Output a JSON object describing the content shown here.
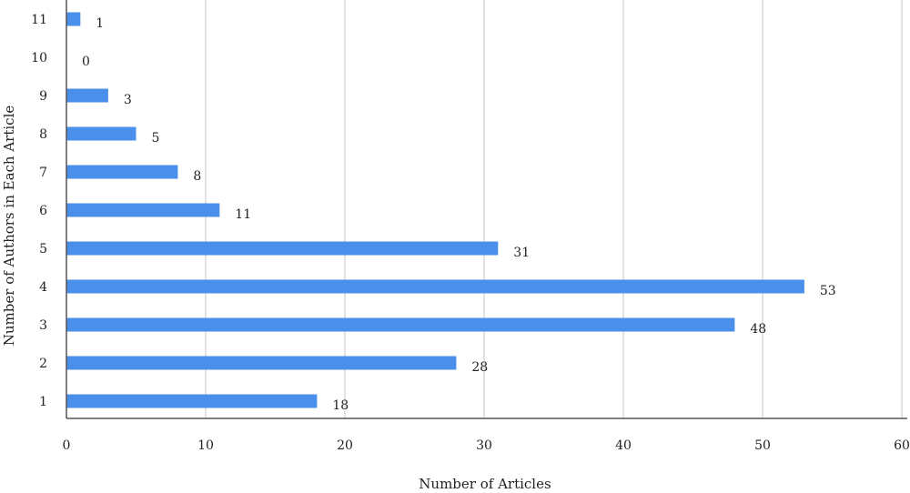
{
  "chart_data": {
    "type": "bar",
    "orientation": "horizontal",
    "categories": [
      "1",
      "2",
      "3",
      "4",
      "5",
      "6",
      "7",
      "8",
      "9",
      "10",
      "11"
    ],
    "values": [
      18,
      28,
      48,
      53,
      31,
      11,
      8,
      5,
      3,
      0,
      1
    ],
    "value_labels": [
      "18",
      "28",
      "48",
      "53",
      "31",
      "11",
      "8",
      "5",
      "3",
      "0",
      "1"
    ],
    "xlabel": "Number of Articles",
    "ylabel": "Number of Authors in Each Article",
    "xlim": [
      0,
      60
    ],
    "x_ticks": [
      0,
      10,
      20,
      30,
      40,
      50,
      60
    ],
    "x_tick_labels": [
      "0",
      "10",
      "20",
      "30",
      "40",
      "50",
      "60"
    ],
    "grid": "vertical",
    "legend": "none",
    "bar_color": "#4a8fe9",
    "grid_color": "#d9d9d9",
    "axis_color": "#555555"
  }
}
